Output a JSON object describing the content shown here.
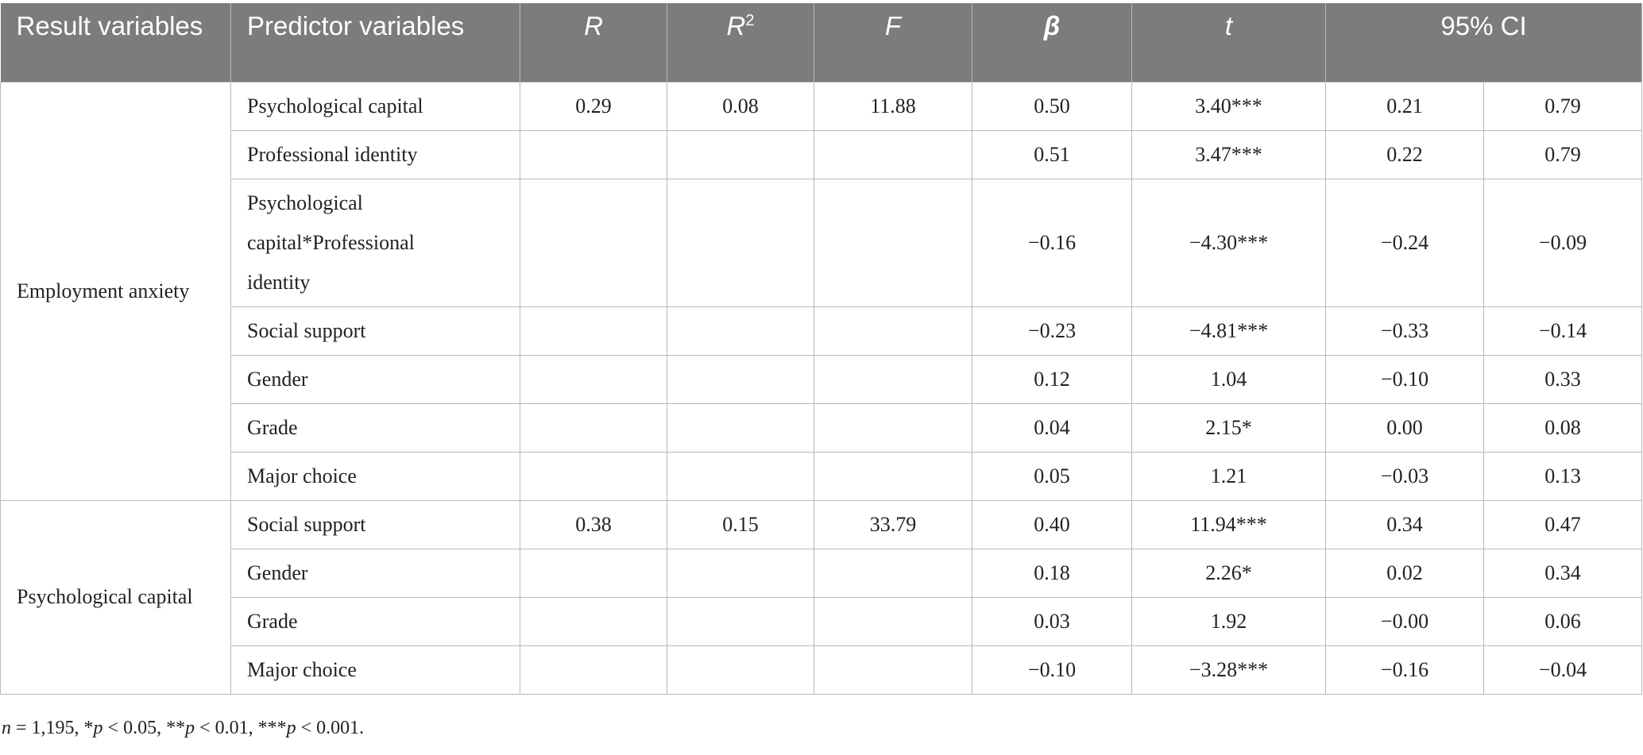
{
  "header": {
    "result_variables": "Result variables",
    "predictor_variables": "Predictor variables",
    "r": "R",
    "r2_base": "R",
    "r2_sup": "2",
    "f": "F",
    "beta": "β",
    "t": "t",
    "ci": "95% CI"
  },
  "groups": [
    {
      "result": "Employment anxiety",
      "rows": [
        {
          "predictor": "Psychological capital",
          "r": "0.29",
          "r2": "0.08",
          "f": "11.88",
          "beta": "0.50",
          "t": "3.40***",
          "ci_low": "0.21",
          "ci_high": "0.79"
        },
        {
          "predictor": "Professional identity",
          "r": "",
          "r2": "",
          "f": "",
          "beta": "0.51",
          "t": "3.47***",
          "ci_low": "0.22",
          "ci_high": "0.79"
        },
        {
          "predictor": "Psychological capital*Professional identity",
          "predictor_lines": [
            "Psychological",
            "capital*Professional",
            "identity"
          ],
          "r": "",
          "r2": "",
          "f": "",
          "beta": "−0.16",
          "t": "−4.30***",
          "ci_low": "−0.24",
          "ci_high": "−0.09"
        },
        {
          "predictor": "Social support",
          "r": "",
          "r2": "",
          "f": "",
          "beta": "−0.23",
          "t": "−4.81***",
          "ci_low": "−0.33",
          "ci_high": "−0.14"
        },
        {
          "predictor": "Gender",
          "r": "",
          "r2": "",
          "f": "",
          "beta": "0.12",
          "t": "1.04",
          "ci_low": "−0.10",
          "ci_high": "0.33"
        },
        {
          "predictor": "Grade",
          "r": "",
          "r2": "",
          "f": "",
          "beta": "0.04",
          "t": "2.15*",
          "ci_low": "0.00",
          "ci_high": "0.08"
        },
        {
          "predictor": "Major choice",
          "r": "",
          "r2": "",
          "f": "",
          "beta": "0.05",
          "t": "1.21",
          "ci_low": "−0.03",
          "ci_high": "0.13"
        }
      ]
    },
    {
      "result": "Psychological capital",
      "rows": [
        {
          "predictor": "Social support",
          "r": "0.38",
          "r2": "0.15",
          "f": "33.79",
          "beta": "0.40",
          "t": "11.94***",
          "ci_low": "0.34",
          "ci_high": "0.47"
        },
        {
          "predictor": "Gender",
          "r": "",
          "r2": "",
          "f": "",
          "beta": "0.18",
          "t": "2.26*",
          "ci_low": "0.02",
          "ci_high": "0.34"
        },
        {
          "predictor": "Grade",
          "r": "",
          "r2": "",
          "f": "",
          "beta": "0.03",
          "t": "1.92",
          "ci_low": "−0.00",
          "ci_high": "0.06"
        },
        {
          "predictor": "Major choice",
          "r": "",
          "r2": "",
          "f": "",
          "beta": "−0.10",
          "t": "−3.28***",
          "ci_low": "−0.16",
          "ci_high": "−0.04"
        }
      ]
    }
  ],
  "footnote": {
    "n_symbol": "n",
    "n_text": " = 1,195, *",
    "p1": "p",
    "t1": " < 0.05, **",
    "p2": "p",
    "t2": " < 0.01, ***",
    "p3": "p",
    "t3": " < 0.001."
  }
}
